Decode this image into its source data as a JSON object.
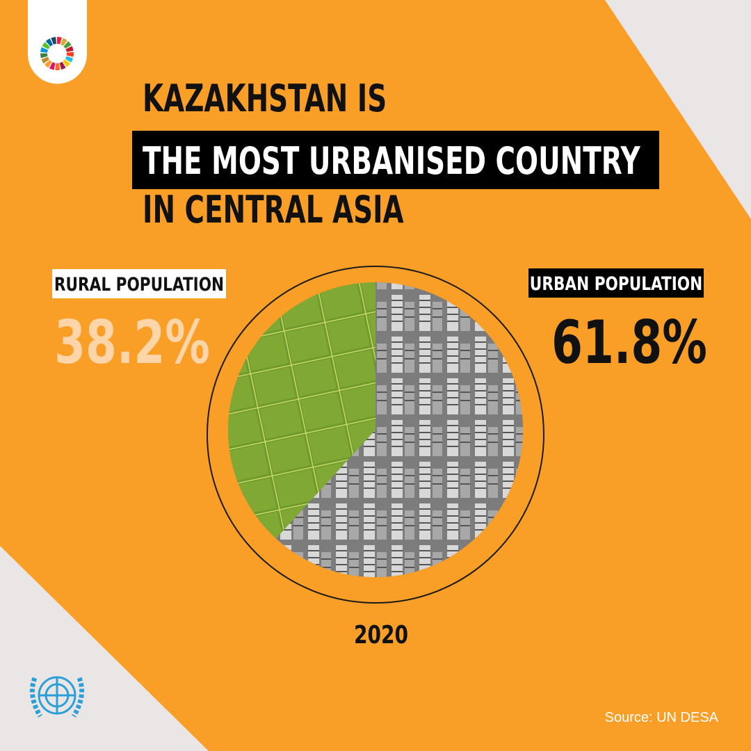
{
  "chart_data": {
    "type": "pie",
    "title_lines": [
      "KAZAKHSTAN IS",
      "THE MOST URBANISED COUNTRY",
      "IN CENTRAL ASIA"
    ],
    "categories": [
      "RURAL POPULATION",
      "URBAN POPULATION"
    ],
    "values": [
      38.2,
      61.8
    ],
    "value_labels": [
      "38.2%",
      "61.8%"
    ],
    "colors": [
      "#6f9a2c",
      "#8a8a8a"
    ],
    "year": "2020",
    "source": "Source: UN DESA"
  }
}
